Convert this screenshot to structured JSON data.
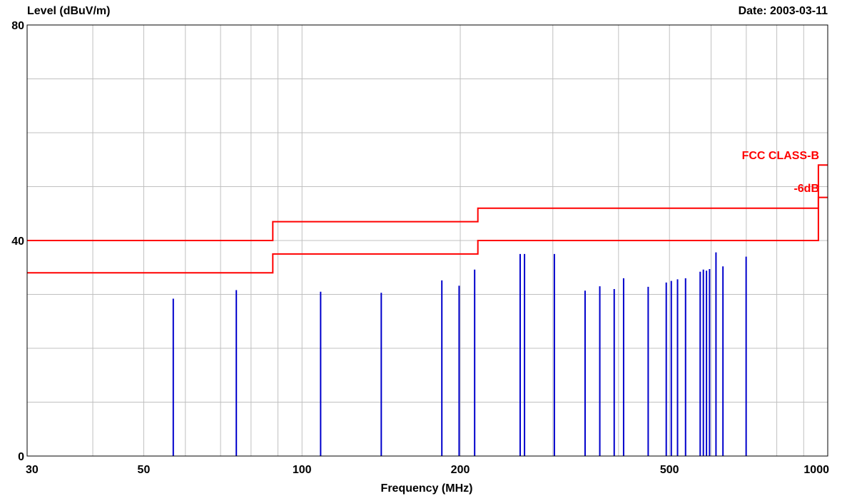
{
  "chart_data": {
    "type": "bar",
    "ylabel": "Level (dBuV/m)",
    "xlabel": "Frequency (MHz)",
    "date_label": "Date: 2003-03-11",
    "x_scale": "log",
    "xlim": [
      30,
      1000
    ],
    "ylim": [
      0,
      80
    ],
    "x_ticks": [
      {
        "value": 30,
        "label": "30"
      },
      {
        "value": 50,
        "label": "50"
      },
      {
        "value": 100,
        "label": "100"
      },
      {
        "value": 200,
        "label": "200"
      },
      {
        "value": 500,
        "label": "500"
      },
      {
        "value": 1000,
        "label": "1000"
      }
    ],
    "y_ticks": [
      {
        "value": 0,
        "label": "0"
      },
      {
        "value": 40,
        "label": "40"
      },
      {
        "value": 80,
        "label": "80"
      }
    ],
    "grid": true,
    "colors": {
      "emissions": "#0000cc",
      "limits": "#ff0000",
      "grid": "#c0c0c0"
    },
    "emissions": {
      "x": [
        56.9,
        75.0,
        108.5,
        141.5,
        184.5,
        199.0,
        213.0,
        260.0,
        265.0,
        302.0,
        345.5,
        368.5,
        392.5,
        409.0,
        455.5,
        493.0,
        504.0,
        518.0,
        536.5,
        572.0,
        580.0,
        588.0,
        596.0,
        613.0,
        632.0,
        699.5
      ],
      "values": [
        29.2,
        30.8,
        30.5,
        30.3,
        32.6,
        31.6,
        34.6,
        37.5,
        37.5,
        37.5,
        30.7,
        31.5,
        31.0,
        33.0,
        31.4,
        32.2,
        32.5,
        32.8,
        33.0,
        34.2,
        34.6,
        34.4,
        34.7,
        37.8,
        35.2,
        37.0
      ]
    },
    "limit_lines": [
      {
        "name": "FCC CLASS-B",
        "x": [
          30,
          88,
          88,
          216,
          216,
          960,
          960,
          1000
        ],
        "y": [
          40,
          40,
          43.5,
          43.5,
          46,
          46,
          54,
          54
        ]
      },
      {
        "name": "-6dB",
        "x": [
          30,
          88,
          88,
          216,
          216,
          960,
          960,
          1000
        ],
        "y": [
          34,
          34,
          37.5,
          37.5,
          40,
          40,
          48,
          48
        ]
      }
    ]
  }
}
